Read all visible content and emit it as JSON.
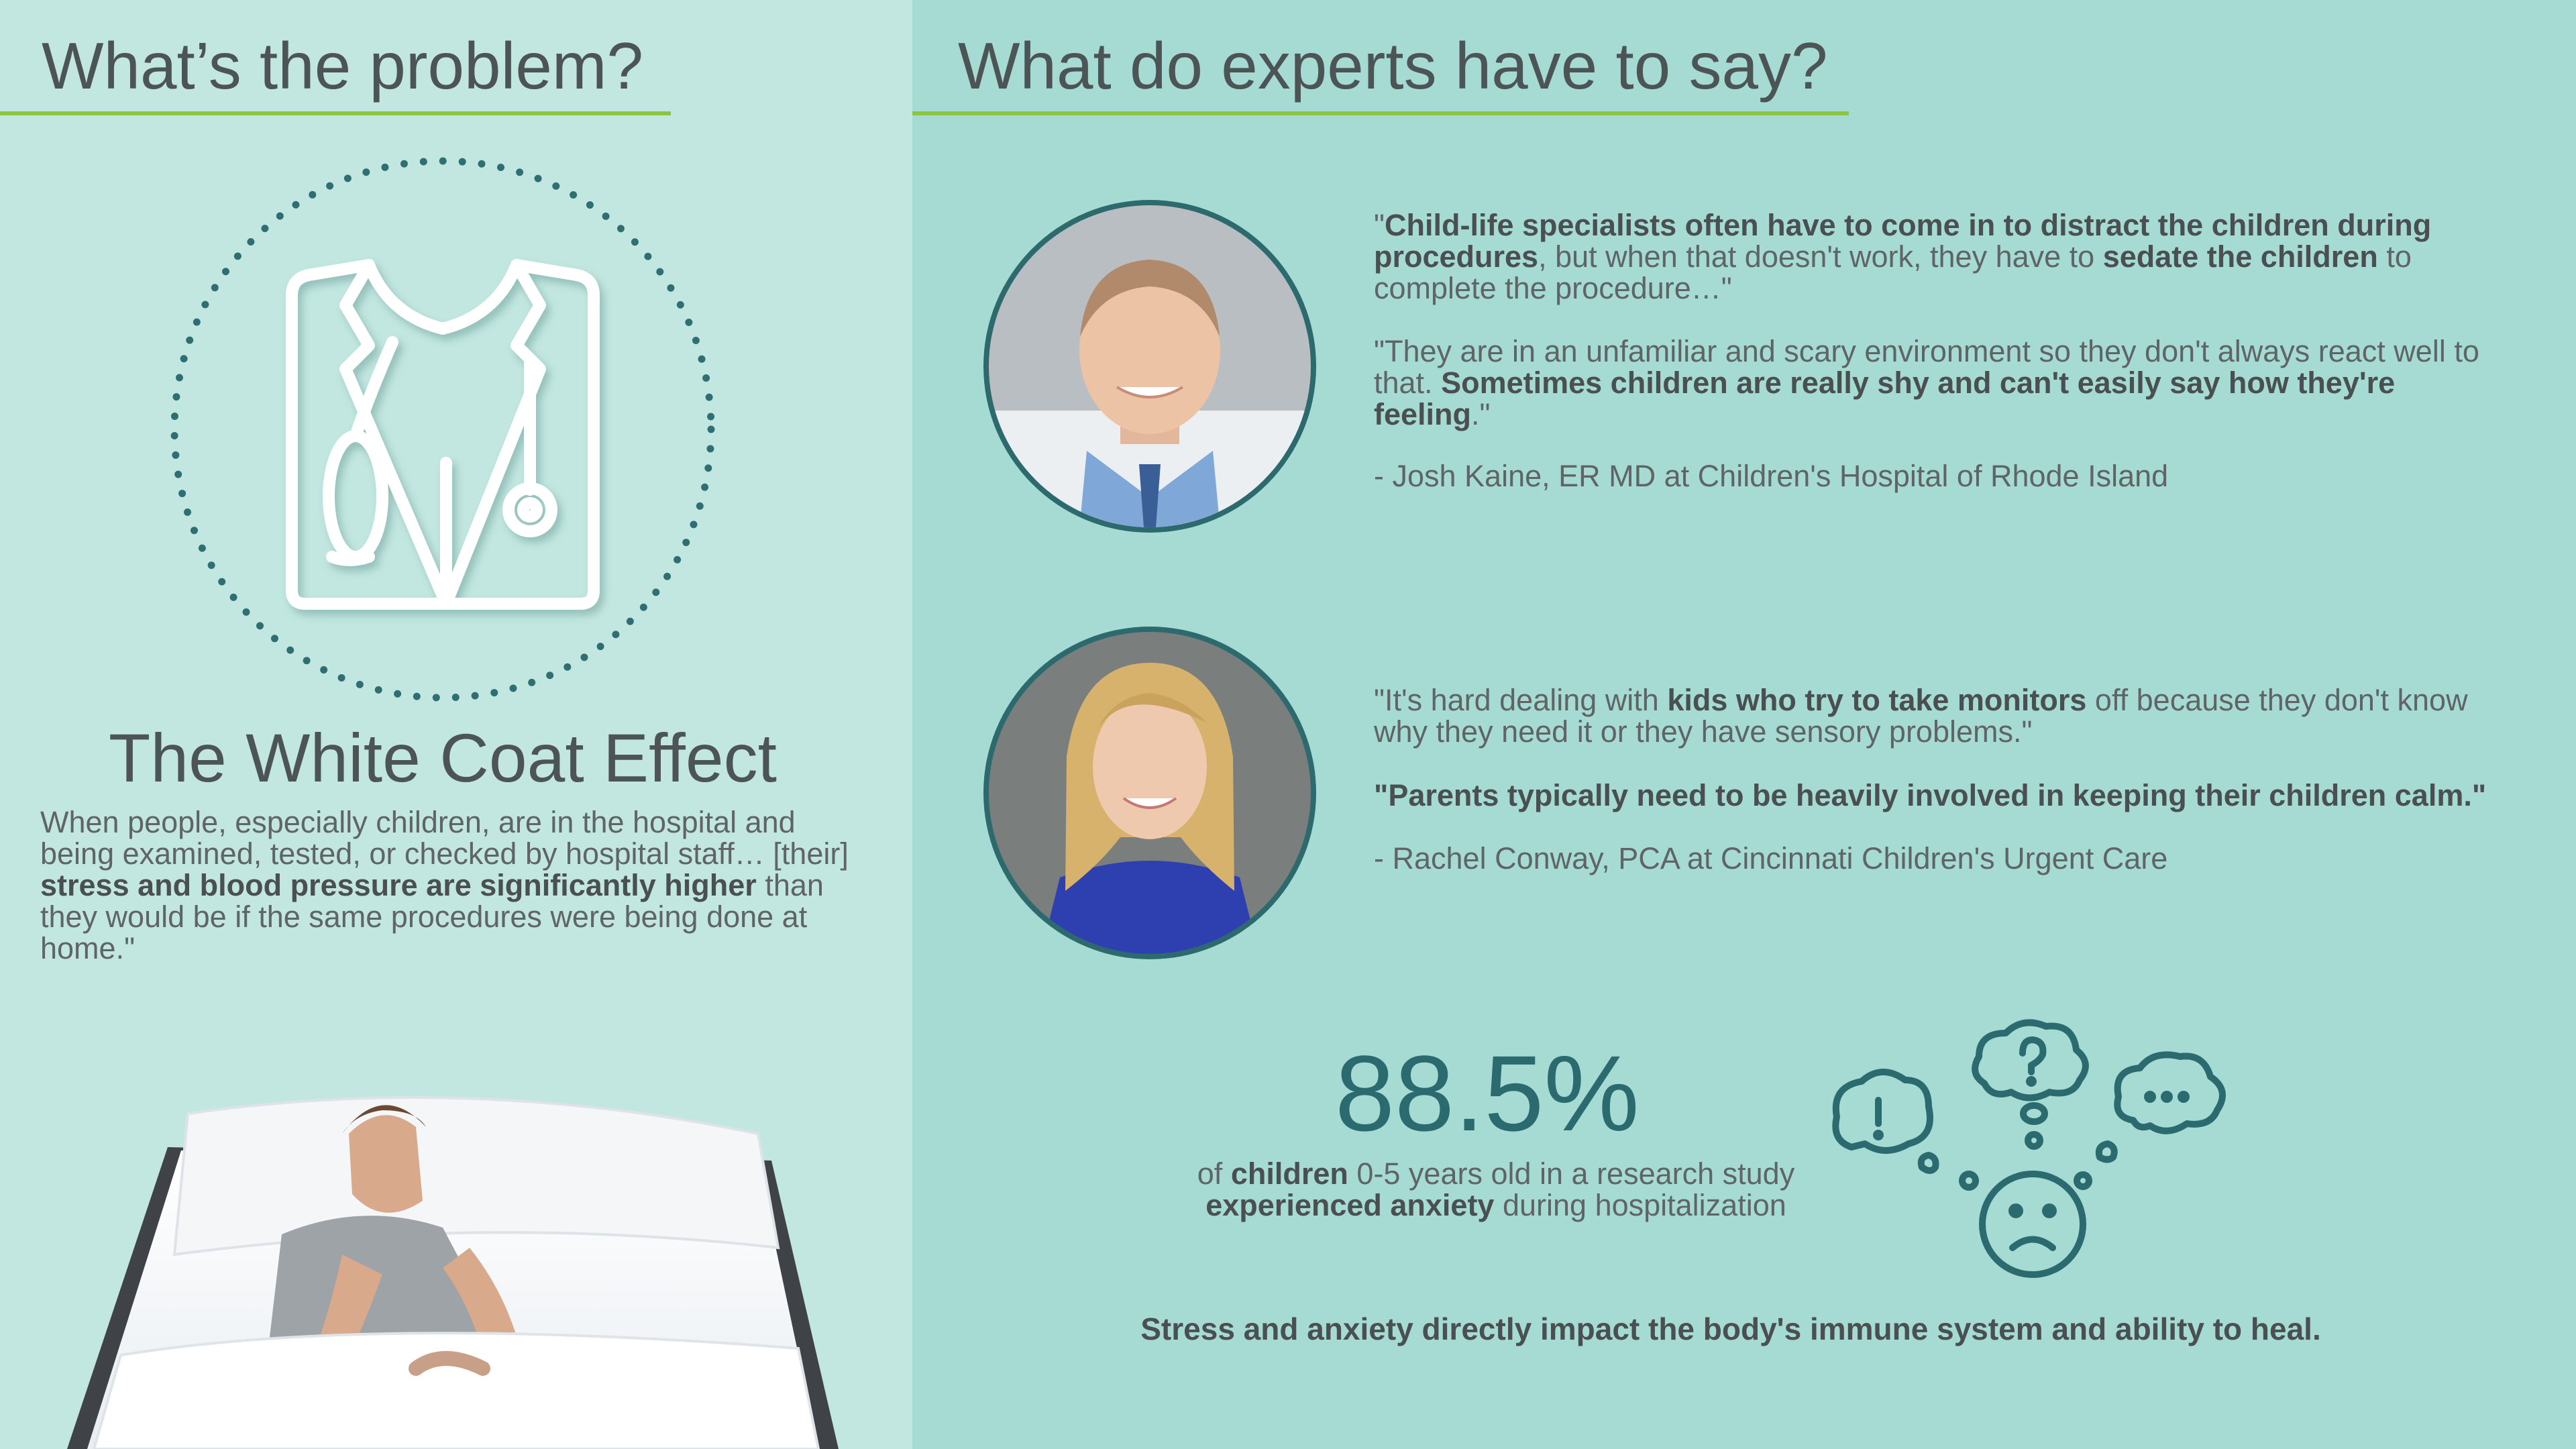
{
  "left": {
    "heading": "What’s the problem?",
    "icon": "doctor-coat-stethoscope-icon",
    "white_coat_title": "The White Coat Effect",
    "white_coat_body": {
      "part1": "When people, especially children, are in the hospital and being examined, tested, or checked by hospital staff… [their] ",
      "bold1": "stress and blood pressure are significantly higher",
      "part2": " than they would be if the same procedures were being done at home.\""
    }
  },
  "right": {
    "heading": "What do experts have to say?",
    "expert1": {
      "quote1": {
        "t1": "\"",
        "b1": "Child-life specialists often have to come in to distract the children during procedures",
        "t2": ", but when that doesn't work, they have to ",
        "b2": "sedate the children",
        "t3": " to complete the procedure…\""
      },
      "quote2": {
        "t1": "\"They are in an unfamiliar and scary environment so they don't always react well to that.  ",
        "b1": "Sometimes children are really shy and can't easily say how they're feeling",
        "t2": ".\""
      },
      "attribution": "- Josh Kaine, ER MD at Children's Hospital of Rhode Island"
    },
    "expert2": {
      "quote1": {
        "t1": "\"It's hard dealing with ",
        "b1": "kids who try to take monitors",
        "t2": " off because they don't know why they need it or they have sensory problems.\""
      },
      "quote2": "\"Parents typically need to be heavily involved in keeping their children calm.\"",
      "attribution": "- Rachel Conway, PCA at Cincinnati Children's Urgent Care"
    },
    "stat": {
      "value": "88.5%",
      "t1": "of ",
      "b1": "children",
      "t2": " 0-5 years old in a research study ",
      "b2": "experienced anxiety",
      "t3": " during hospitalization"
    },
    "thought_icon": "anxious-face-thought-bubbles-icon",
    "footer": "Stress and anxiety directly impact the body's immune system and ability to heal."
  },
  "colors": {
    "left_bg": "#c2e6e0",
    "right_bg": "#a5dbd3",
    "accent_green": "#8cc63f",
    "teal_dark": "#2b6b70"
  }
}
